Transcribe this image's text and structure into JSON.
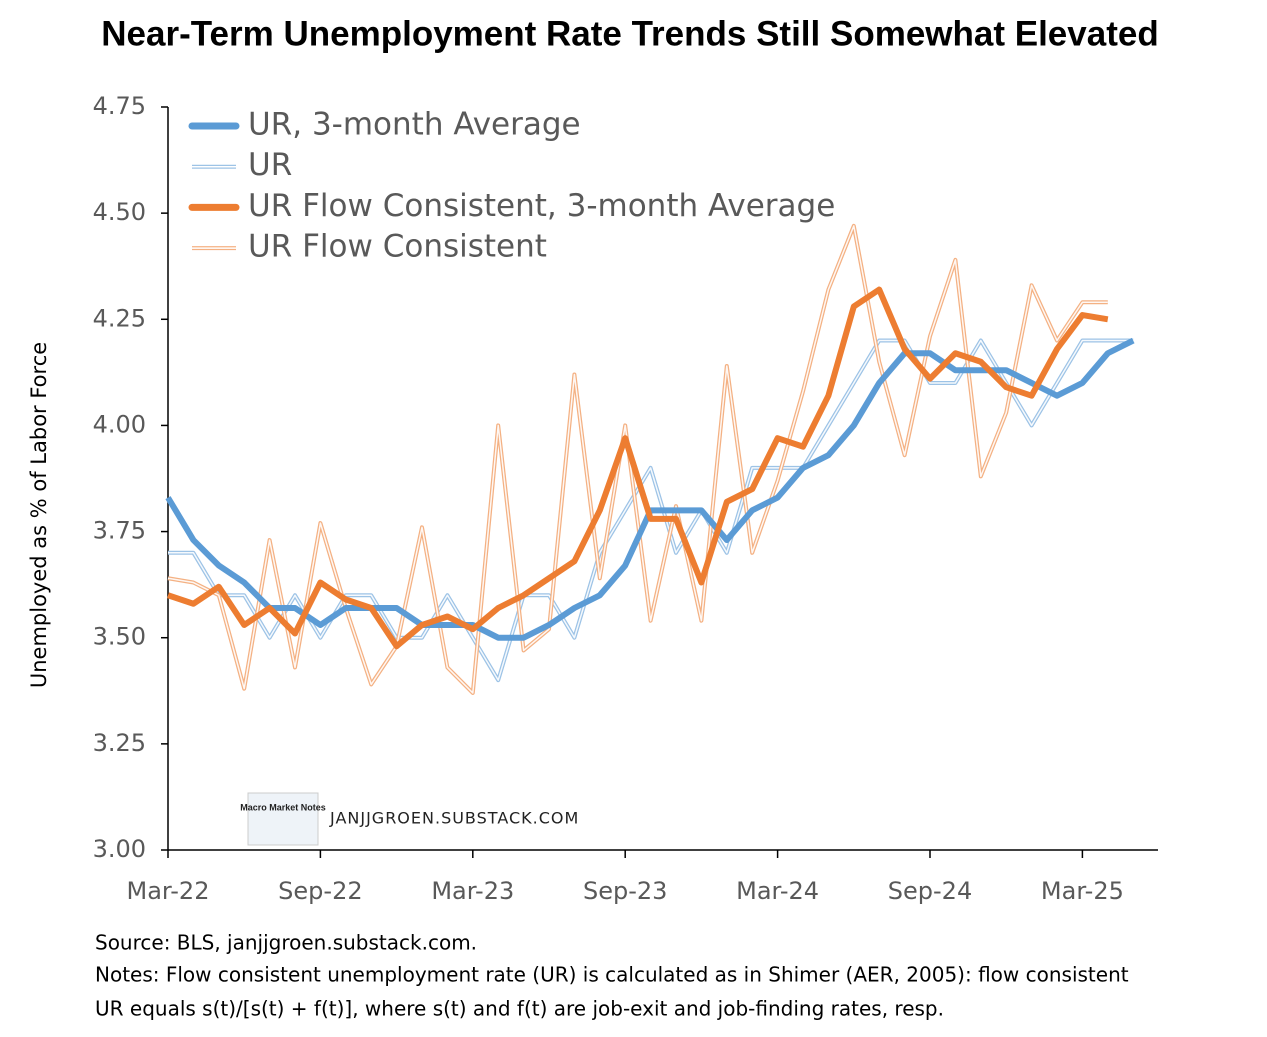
{
  "chart_data": {
    "type": "line",
    "title": "Near-Term Unemployment Rate Trends Still Somewhat Elevated",
    "y_label": "Unemployed as % of Labor Force",
    "categories": [
      "Mar-22",
      null,
      null,
      null,
      null,
      null,
      "Sep-22",
      null,
      null,
      null,
      null,
      null,
      "Mar-23",
      null,
      null,
      null,
      null,
      null,
      "Sep-23",
      null,
      null,
      null,
      null,
      null,
      "Mar-24",
      null,
      null,
      null,
      null,
      null,
      "Sep-24",
      null,
      null,
      null,
      null,
      null,
      "Mar-25",
      null,
      null
    ],
    "ylim": [
      3.0,
      4.75
    ],
    "yticks": [
      {
        "value": 3.0,
        "label": "3.00"
      },
      {
        "value": 3.25,
        "label": "3.25"
      },
      {
        "value": 3.5,
        "label": "3.50"
      },
      {
        "value": 3.75,
        "label": "3.75"
      },
      {
        "value": 4.0,
        "label": "4.00"
      },
      {
        "value": 4.25,
        "label": "4.25"
      },
      {
        "value": 4.5,
        "label": "4.50"
      },
      {
        "value": 4.75,
        "label": "4.75"
      }
    ],
    "legend": "upper left",
    "series": [
      {
        "name": "UR, 3-month Average",
        "color": "#5b9bd5",
        "style": "thick",
        "values": [
          3.83,
          3.73,
          3.67,
          3.63,
          3.57,
          3.57,
          3.53,
          3.57,
          3.57,
          3.57,
          3.53,
          3.53,
          3.53,
          3.5,
          3.5,
          3.53,
          3.57,
          3.6,
          3.67,
          3.8,
          3.8,
          3.8,
          3.73,
          3.8,
          3.83,
          3.9,
          3.93,
          4.0,
          4.1,
          4.17,
          4.17,
          4.13,
          4.13,
          4.13,
          4.1,
          4.07,
          4.1,
          4.17,
          4.2
        ]
      },
      {
        "name": "UR",
        "color": "#9dc3e6",
        "style": "thin",
        "values": [
          3.7,
          3.7,
          3.6,
          3.6,
          3.5,
          3.6,
          3.5,
          3.6,
          3.6,
          3.5,
          3.5,
          3.6,
          3.5,
          3.4,
          3.6,
          3.6,
          3.5,
          3.7,
          3.8,
          3.9,
          3.7,
          3.8,
          3.7,
          3.9,
          3.9,
          3.9,
          4.0,
          4.1,
          4.2,
          4.2,
          4.1,
          4.1,
          4.2,
          4.1,
          4.0,
          4.1,
          4.2,
          4.2,
          4.2
        ]
      },
      {
        "name": "UR Flow Consistent, 3-month Average",
        "color": "#ed7d31",
        "style": "thick",
        "values": [
          3.6,
          3.58,
          3.62,
          3.53,
          3.57,
          3.51,
          3.63,
          3.59,
          3.57,
          3.48,
          3.53,
          3.55,
          3.52,
          3.57,
          3.6,
          3.64,
          3.68,
          3.8,
          3.97,
          3.78,
          3.78,
          3.63,
          3.82,
          3.85,
          3.97,
          3.95,
          4.07,
          4.28,
          4.32,
          4.18,
          4.11,
          4.17,
          4.15,
          4.09,
          4.07,
          4.18,
          4.26,
          4.25,
          null
        ]
      },
      {
        "name": "UR Flow Consistent",
        "color": "#f4b183",
        "style": "thin",
        "values": [
          3.64,
          3.63,
          3.6,
          3.38,
          3.73,
          3.43,
          3.77,
          3.57,
          3.39,
          3.48,
          3.76,
          3.43,
          3.37,
          4.0,
          3.47,
          3.52,
          4.12,
          3.64,
          4.0,
          3.54,
          3.81,
          3.54,
          4.14,
          3.7,
          3.87,
          4.08,
          4.32,
          4.47,
          4.15,
          3.93,
          4.21,
          4.39,
          3.88,
          4.03,
          4.33,
          4.2,
          4.29,
          4.29,
          null
        ]
      }
    ],
    "watermark": "JANJJGROEN.SUBSTACK.COM",
    "logo_text": "Macro Market Notes",
    "source": "Source: BLS, janjjgroen.substack.com.",
    "notes": [
      "Notes: Flow consistent unemployment rate (UR) is calculated as in Shimer (AER, 2005):  flow consistent",
      "UR equals s(t)/[s(t) + f(t)], where s(t) and f(t) are job-exit and job-finding rates, resp."
    ]
  }
}
